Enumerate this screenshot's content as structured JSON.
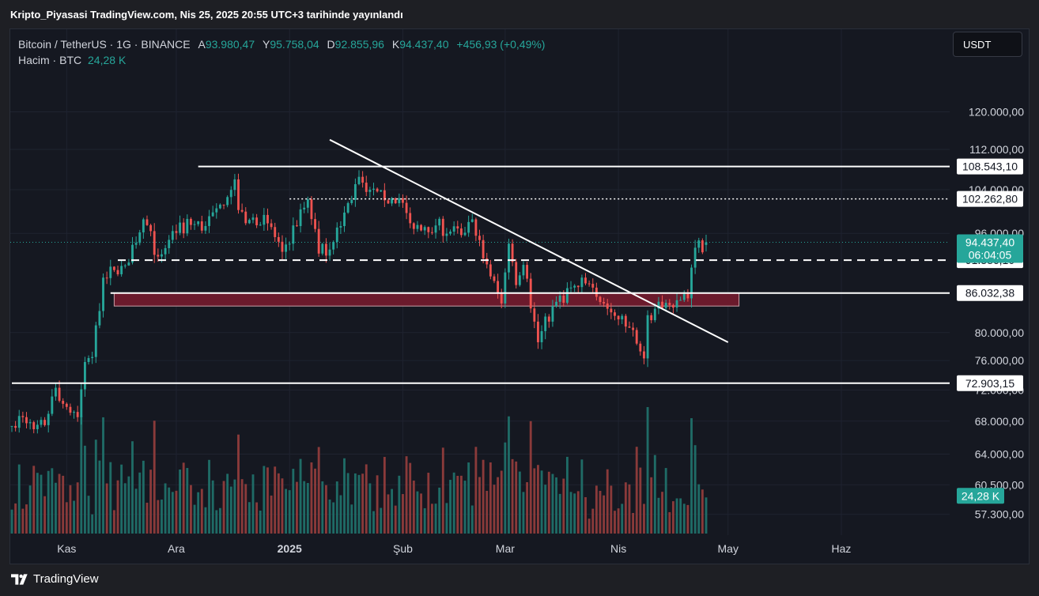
{
  "header": {
    "publish_text": "Kripto_Piyasasi TradingView.com, Nis 25, 2025 20:55 UTC+3 tarihinde yayınlandı"
  },
  "legend": {
    "symbol": "Bitcoin / TetherUS · 1G · BINANCE",
    "open_label": "A",
    "open_value": "93.980,47",
    "high_label": "Y",
    "high_value": "95.758,04",
    "low_label": "D",
    "low_value": "92.855,96",
    "close_label": "K",
    "close_value": "94.437,40",
    "change": "+456,93 (+0,49%)",
    "volume_label": "Hacim · BTC",
    "volume_value": "24,28 K"
  },
  "currency_button": "USDT",
  "footer": {
    "brand": "TradingView"
  },
  "colors": {
    "up": "#26a69a",
    "down": "#ef5350",
    "up_volume": "#1f6b66",
    "down_volume": "#8a3a3a",
    "zone": "#6b1a2c",
    "background": "#151821",
    "price_tag": "#26a69a"
  },
  "chart_data": {
    "type": "candlestick",
    "symbol": "BTC/USDT",
    "interval": "1D",
    "y_scale": "log",
    "ylim": [
      55800,
      128000
    ],
    "y_ticks": [
      {
        "value": 120000,
        "label": "120.000,00"
      },
      {
        "value": 112000,
        "label": "112.000,00"
      },
      {
        "value": 104000,
        "label": "104.000,00"
      },
      {
        "value": 96000,
        "label": "96.000,00"
      },
      {
        "value": 80000,
        "label": "80.000,00"
      },
      {
        "value": 76000,
        "label": "76.000,00"
      },
      {
        "value": 72000,
        "label": "72.000,00"
      },
      {
        "value": 68000,
        "label": "68.000,00"
      },
      {
        "value": 64000,
        "label": "64.000,00"
      },
      {
        "value": 60500,
        "label": "60.500,00"
      },
      {
        "value": 57300,
        "label": "57.300,00"
      }
    ],
    "x_ticks": [
      {
        "date": "2024-11-01",
        "label": "Kas"
      },
      {
        "date": "2024-12-01",
        "label": "Ara"
      },
      {
        "date": "2025-01-01",
        "label": "2025"
      },
      {
        "date": "2025-02-01",
        "label": "Şub"
      },
      {
        "date": "2025-03-01",
        "label": "Mar"
      },
      {
        "date": "2025-04-01",
        "label": "Nis"
      },
      {
        "date": "2025-05-01",
        "label": "May"
      },
      {
        "date": "2025-06-01",
        "label": "Haz"
      }
    ],
    "x_range": [
      "2024-10-17",
      "2025-06-30"
    ],
    "anchors": [
      [
        "2024-10-17",
        67400
      ],
      [
        "2024-10-20",
        68500
      ],
      [
        "2024-10-23",
        67000
      ],
      [
        "2024-10-26",
        67500
      ],
      [
        "2024-10-29",
        72300
      ],
      [
        "2024-10-31",
        70200
      ],
      [
        "2024-11-04",
        68500
      ],
      [
        "2024-11-06",
        75800
      ],
      [
        "2024-11-08",
        76500
      ],
      [
        "2024-11-11",
        88500
      ],
      [
        "2024-11-13",
        90300
      ],
      [
        "2024-11-17",
        90500
      ],
      [
        "2024-11-22",
        98500
      ],
      [
        "2024-11-26",
        92000
      ],
      [
        "2024-11-30",
        96400
      ],
      [
        "2024-12-05",
        97500
      ],
      [
        "2024-12-09",
        97300
      ],
      [
        "2024-12-13",
        101200
      ],
      [
        "2024-12-17",
        106000
      ],
      [
        "2024-12-18",
        100200
      ],
      [
        "2024-12-20",
        97800
      ],
      [
        "2024-12-25",
        99300
      ],
      [
        "2024-12-30",
        92800
      ],
      [
        "2025-01-06",
        102200
      ],
      [
        "2025-01-09",
        92500
      ],
      [
        "2025-01-13",
        94500
      ],
      [
        "2025-01-20",
        106500
      ],
      [
        "2025-01-23",
        104000
      ],
      [
        "2025-01-27",
        102000
      ],
      [
        "2025-01-31",
        102400
      ],
      [
        "2025-02-03",
        97800
      ],
      [
        "2025-02-10",
        97400
      ],
      [
        "2025-02-17",
        95700
      ],
      [
        "2025-02-20",
        98500
      ],
      [
        "2025-02-25",
        88700
      ],
      [
        "2025-02-28",
        84400
      ],
      [
        "2025-03-02",
        94200
      ],
      [
        "2025-03-04",
        87300
      ],
      [
        "2025-03-06",
        90600
      ],
      [
        "2025-03-10",
        78600
      ],
      [
        "2025-03-14",
        84000
      ],
      [
        "2025-03-19",
        86900
      ],
      [
        "2025-03-24",
        87500
      ],
      [
        "2025-03-28",
        84400
      ],
      [
        "2025-03-31",
        82500
      ],
      [
        "2025-04-02",
        82500
      ],
      [
        "2025-04-06",
        78400
      ],
      [
        "2025-04-08",
        76300
      ],
      [
        "2025-04-09",
        82600
      ],
      [
        "2025-04-13",
        83700
      ],
      [
        "2025-04-17",
        84900
      ],
      [
        "2025-04-20",
        85200
      ],
      [
        "2025-04-22",
        93500
      ],
      [
        "2025-04-25",
        94437
      ]
    ],
    "volume_range_k": [
      0,
      85
    ],
    "last_volume_k": 24.28,
    "horizontal_levels": [
      {
        "price": 108543.1,
        "label": "108.543,10",
        "style": "solid",
        "from": "2024-12-07"
      },
      {
        "price": 102262.8,
        "label": "102.262,80",
        "style": "dotted",
        "from": "2025-01-01"
      },
      {
        "price": 91386.1,
        "label": "91.386,10",
        "style": "dashed",
        "from": "2024-11-15"
      },
      {
        "price": 86032.38,
        "label": "86.032,38",
        "style": "solid",
        "from": "2024-11-13"
      },
      {
        "price": 72903.15,
        "label": "72.903,15",
        "style": "solid",
        "from": "2024-10-17"
      }
    ],
    "trendline": {
      "from": [
        "2025-01-12",
        114000
      ],
      "to": [
        "2025-05-01",
        78600
      ]
    },
    "zone": {
      "from": "2024-11-14",
      "to": "2025-05-04",
      "top": 86000,
      "bottom": 84000
    },
    "last_price": {
      "value": "94.437,40",
      "countdown": "06:04:05"
    }
  }
}
